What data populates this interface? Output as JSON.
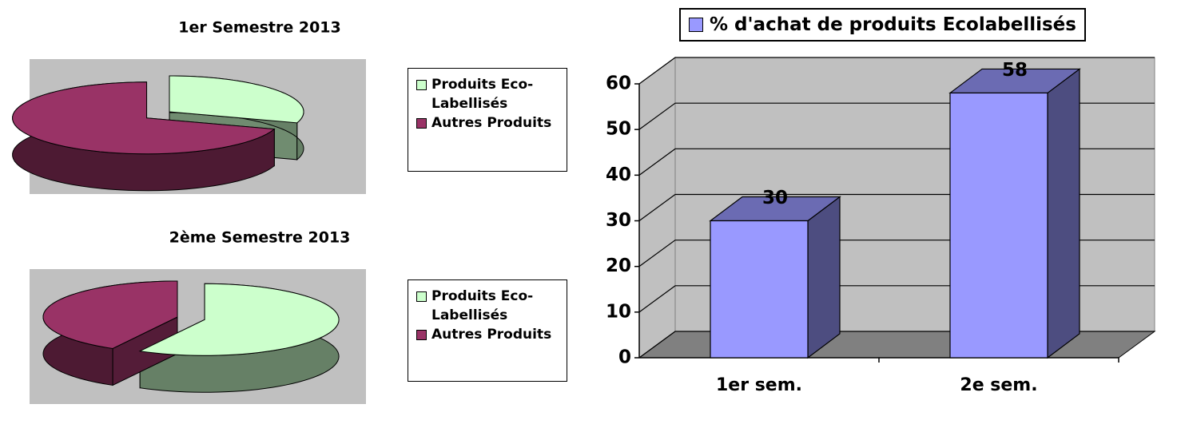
{
  "chart_data": [
    {
      "type": "pie",
      "title": "1er Semestre 2013",
      "categories": [
        "Produits Eco-Labellisés",
        "Autres Produits"
      ],
      "values": [
        30,
        70
      ],
      "colors": [
        "#ccffcc",
        "#993366"
      ],
      "legend": "right"
    },
    {
      "type": "pie",
      "title": "2ème Semestre 2013",
      "categories": [
        "Produits Eco-Labellisés",
        "Autres Produits"
      ],
      "values": [
        58,
        42
      ],
      "colors": [
        "#ccffcc",
        "#993366"
      ],
      "legend": "right"
    },
    {
      "type": "bar",
      "categories": [
        "1er sem.",
        "2e sem."
      ],
      "series": [
        {
          "name": "% d'achat de produits Ecolabellisés",
          "color": "#9999ff",
          "values": [
            30,
            58
          ]
        }
      ],
      "ylim": [
        0,
        60
      ],
      "yticks": [
        0,
        10,
        20,
        30,
        40,
        50,
        60
      ],
      "grid": true,
      "legend": "top"
    }
  ]
}
